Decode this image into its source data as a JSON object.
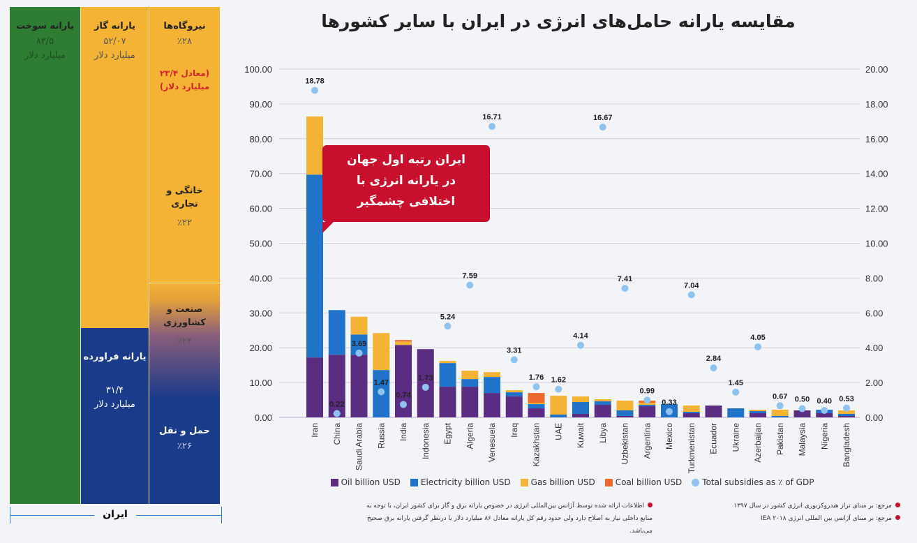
{
  "left_panel": {
    "fuel": {
      "title": "یارانه سوخت",
      "value": "۸۳/۵",
      "unit": "میلیارد دلار",
      "color": "#2e7d32"
    },
    "gas": {
      "title": "یارانه گاز",
      "value": "۵۲/۰۷",
      "unit": "میلیارد دلار",
      "color": "#f5b335"
    },
    "products": {
      "title": "یارانه فراورده",
      "value": "۳۱/۴",
      "unit": "میلیارد دلار",
      "color": "#1a3a8a"
    },
    "sectors": [
      {
        "title": "نیروگاه‌ها",
        "pct": "٪۲۸",
        "note": "(معادل ۲۳/۴ میلیارد دلار)"
      },
      {
        "title": "خانگی و تجاری",
        "pct": "٪۲۲"
      },
      {
        "title": "صنعت و کشاورزی",
        "pct": "٪۲۴"
      },
      {
        "title": "حمل و نقل",
        "pct": "٪۲۶"
      }
    ],
    "bracket_label": "ایران"
  },
  "callout": {
    "line1": "ایران رتبه اول جهان",
    "line2": "در یارانه انرژی با",
    "line3": "اختلافی چشمگیر"
  },
  "chart_data": {
    "type": "bar",
    "title": "مقایسه یارانه حامل‌های انرژی در ایران با سایر کشورها",
    "stacked": true,
    "categories": [
      "Iran",
      "China",
      "Saudi Arabia",
      "Russia",
      "India",
      "Indonesia",
      "Egypt",
      "Algeria",
      "Venesuela",
      "Iraq",
      "Kazakhstan",
      "UAE",
      "Kuwait",
      "Libya",
      "Uzbekistan",
      "Argentina",
      "Mexico",
      "Turkmenistan",
      "Ecuador",
      "Ukraine",
      "Azerbaijan",
      "Pakistan",
      "Malaysia",
      "Nigeria",
      "Bangladesh"
    ],
    "series": [
      {
        "name": "Oil billion USD",
        "color": "#5b2d82",
        "values": [
          17.2,
          18.0,
          18.0,
          0,
          20.8,
          19.6,
          8.8,
          8.8,
          7.0,
          6.0,
          2.6,
          0,
          1.0,
          3.6,
          0.4,
          3.2,
          0,
          1.2,
          3.4,
          0,
          1.2,
          0,
          2.0,
          1.2,
          0.4
        ]
      },
      {
        "name": "Electricity billion USD",
        "color": "#1f73c9",
        "values": [
          52.5,
          12.8,
          5.8,
          13.6,
          0,
          0,
          6.8,
          2.2,
          4.6,
          1.2,
          1.2,
          0.8,
          3.4,
          1.0,
          1.6,
          0.4,
          3.8,
          0.4,
          0,
          2.6,
          0.6,
          0.4,
          0,
          1.0,
          0.6
        ]
      },
      {
        "name": "Gas billion USD",
        "color": "#f5b335",
        "values": [
          16.7,
          0,
          5.1,
          10.6,
          1.0,
          0,
          0.6,
          2.4,
          1.4,
          0.6,
          0.4,
          5.4,
          1.6,
          0.6,
          2.8,
          0.6,
          0,
          1.8,
          0,
          0,
          0.4,
          1.8,
          0,
          0,
          1.0
        ]
      },
      {
        "name": "Coal billion USD",
        "color": "#ec6a2c",
        "values": [
          0,
          0,
          0,
          0,
          0.4,
          0,
          0,
          0,
          0,
          0,
          2.8,
          0,
          0,
          0,
          0,
          0.6,
          0,
          0,
          0,
          0,
          0,
          0,
          0,
          0,
          0
        ]
      }
    ],
    "secondary_series": {
      "name": "Total subsidies as ٪ of GDP",
      "color": "#8ec3f0",
      "values": [
        18.78,
        0.22,
        3.69,
        1.47,
        0.74,
        1.73,
        5.24,
        7.59,
        16.71,
        3.31,
        1.76,
        1.62,
        4.14,
        16.67,
        7.41,
        0.99,
        0.33,
        7.04,
        2.84,
        1.45,
        4.05,
        0.67,
        0.5,
        0.4,
        0.53
      ],
      "labels": [
        "18.78",
        "0.22",
        "3.69",
        "1.47",
        "0.74",
        "1.73",
        "5.24",
        "7.59",
        "16.71",
        "3.31",
        "1.76",
        "1.62",
        "4.14",
        "16.67",
        "7.41",
        "0.99",
        "0.33",
        "7.04",
        "2.84",
        "1.45",
        "4.05",
        "0.67",
        "0.50",
        "0.40",
        "0.53"
      ]
    },
    "ylim": [
      0,
      100
    ],
    "y2lim": [
      0,
      20
    ],
    "yticks": [
      "0.00",
      "10.00",
      "20.00",
      "30.00",
      "40.00",
      "50.00",
      "60.00",
      "70.00",
      "80.00",
      "90.00",
      "100.00"
    ],
    "y2ticks": [
      "0.00",
      "2.00",
      "4.00",
      "6.00",
      "8.00",
      "10.00",
      "12.00",
      "14.00",
      "16.00",
      "18.00",
      "20.00"
    ],
    "grid": true,
    "legend_position": "bottom"
  },
  "notes": {
    "ref1": "مرجع: بر مبنای تراز هیدروکربوری انرژی کشور در سال ۱۳۹۷",
    "ref2": "مرجع: بر مبنای آژانس بین المللی انرژی IEA ۲۰۱۸",
    "info": "اطلاعات ارائه شده توسط آژانس بین‌المللی انرژی در خصوص یارانه برق و گاز برای کشور ایران، با توجه به منابع داخلی نیاز به اصلاح دارد ولی حدود رقم کل یارانه معادل ۸۶ میلیارد دلار با درنظر گرفتن یارانه برق صحیح می‌باشد."
  }
}
